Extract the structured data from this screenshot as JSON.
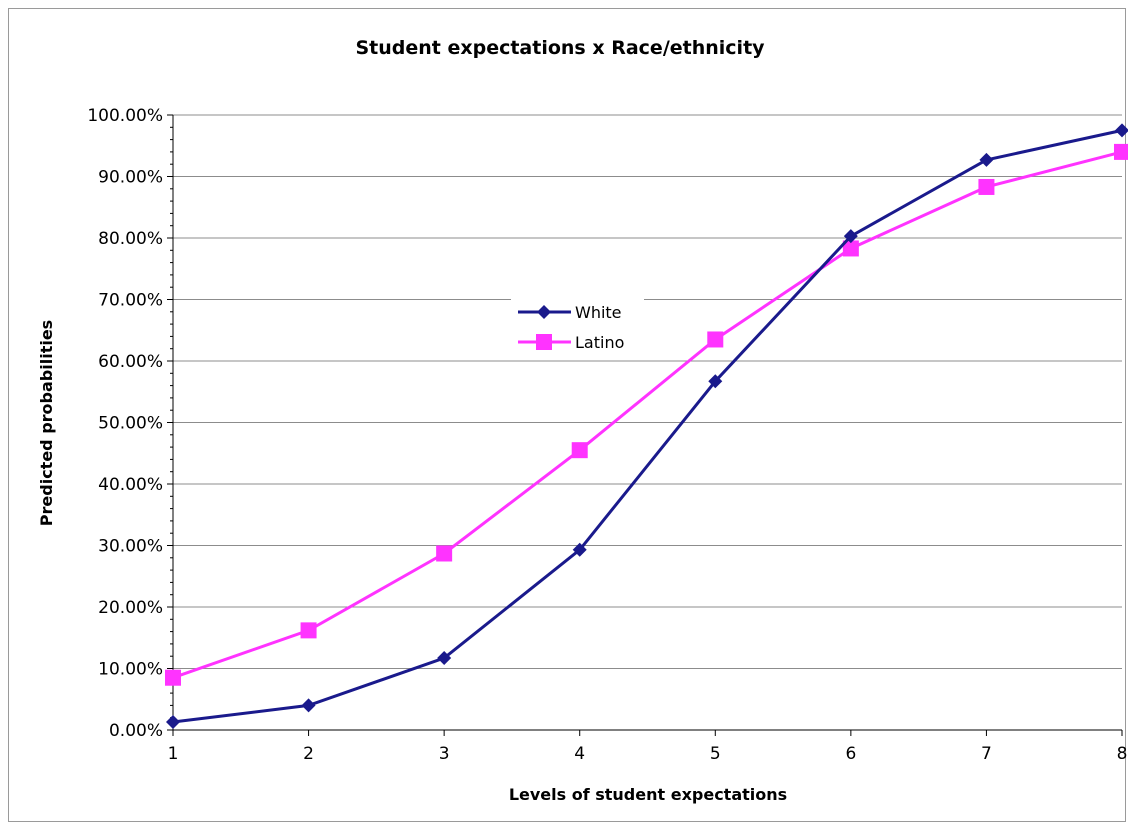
{
  "chart_data": {
    "type": "line",
    "title": "Student expectations x Race/ethnicity",
    "xlabel": "Levels of student expectations",
    "ylabel": "Predicted probabilities",
    "categories": [
      "1",
      "2",
      "3",
      "4",
      "5",
      "6",
      "7",
      "8"
    ],
    "ylim": [
      0,
      1
    ],
    "yticks": [
      0,
      0.1,
      0.2,
      0.3,
      0.4,
      0.5,
      0.6,
      0.7,
      0.8,
      0.9,
      1.0
    ],
    "ytick_labels": [
      "0.00%",
      "10.00%",
      "20.00%",
      "30.00%",
      "40.00%",
      "50.00%",
      "60.00%",
      "70.00%",
      "80.00%",
      "90.00%",
      "100.00%"
    ],
    "grid": true,
    "legend_position": "center-left",
    "series": [
      {
        "name": "White",
        "color": "#1a1a8c",
        "marker": "diamond",
        "values": [
          0.013,
          0.04,
          0.117,
          0.293,
          0.567,
          0.803,
          0.927,
          0.975
        ]
      },
      {
        "name": "Latino",
        "color": "#ff33ff",
        "marker": "square",
        "values": [
          0.085,
          0.162,
          0.287,
          0.455,
          0.635,
          0.783,
          0.883,
          0.94
        ]
      }
    ]
  }
}
